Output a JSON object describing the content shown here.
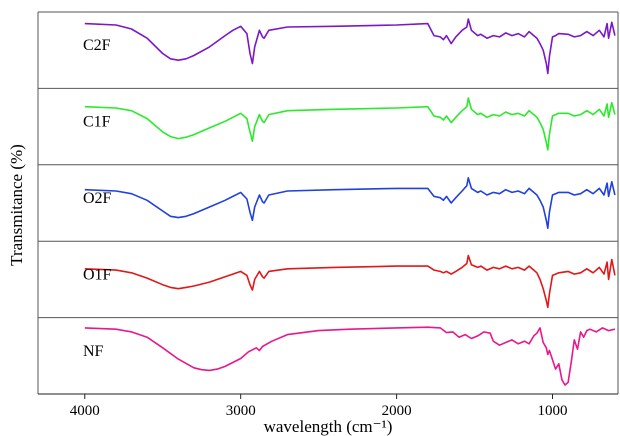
{
  "chart_data": {
    "type": "line",
    "title": "",
    "xlabel": "wavelength (cm⁻¹)",
    "ylabel": "Transmitance (%)",
    "xlim": [
      4300,
      580
    ],
    "x_reversed": true,
    "x_ticks": [
      4000,
      3000,
      2000,
      1000
    ],
    "ylim": [
      0,
      1
    ],
    "grid": false,
    "legend": "none",
    "layout": "stacked-panels",
    "series": [
      {
        "name": "C2F",
        "color": "#7a18c8",
        "x": [
          4000,
          3800,
          3700,
          3600,
          3500,
          3450,
          3400,
          3350,
          3300,
          3200,
          3100,
          3050,
          3000,
          2960,
          2940,
          2925,
          2910,
          2880,
          2860,
          2850,
          2820,
          2700,
          2400,
          2000,
          1800,
          1760,
          1720,
          1700,
          1680,
          1650,
          1620,
          1580,
          1550,
          1540,
          1520,
          1480,
          1460,
          1420,
          1380,
          1340,
          1300,
          1260,
          1220,
          1180,
          1150,
          1120,
          1100,
          1080,
          1060,
          1040,
          1030,
          1020,
          1000,
          980,
          960,
          900,
          860,
          820,
          780,
          740,
          700,
          670,
          650,
          640,
          620,
          600
        ],
        "y": [
          0.9,
          0.88,
          0.82,
          0.68,
          0.45,
          0.37,
          0.35,
          0.37,
          0.42,
          0.55,
          0.72,
          0.8,
          0.86,
          0.75,
          0.45,
          0.3,
          0.55,
          0.8,
          0.7,
          0.68,
          0.8,
          0.85,
          0.86,
          0.88,
          0.9,
          0.72,
          0.7,
          0.66,
          0.72,
          0.6,
          0.7,
          0.8,
          0.85,
          0.97,
          0.8,
          0.72,
          0.74,
          0.68,
          0.72,
          0.7,
          0.76,
          0.72,
          0.75,
          0.7,
          0.78,
          0.72,
          0.68,
          0.6,
          0.5,
          0.3,
          0.15,
          0.4,
          0.7,
          0.72,
          0.75,
          0.74,
          0.7,
          0.72,
          0.78,
          0.72,
          0.8,
          0.7,
          0.9,
          0.68,
          0.92,
          0.72
        ]
      },
      {
        "name": "C1F",
        "color": "#2bea2b",
        "x": [
          4000,
          3800,
          3700,
          3600,
          3500,
          3450,
          3400,
          3350,
          3300,
          3200,
          3100,
          3050,
          3000,
          2960,
          2940,
          2925,
          2910,
          2880,
          2860,
          2850,
          2820,
          2700,
          2400,
          2000,
          1800,
          1760,
          1720,
          1700,
          1680,
          1650,
          1620,
          1580,
          1550,
          1540,
          1520,
          1480,
          1460,
          1420,
          1380,
          1340,
          1300,
          1260,
          1220,
          1180,
          1150,
          1120,
          1100,
          1080,
          1060,
          1040,
          1030,
          1020,
          1000,
          980,
          960,
          900,
          860,
          820,
          780,
          740,
          700,
          670,
          650,
          640,
          620,
          600
        ],
        "y": [
          0.8,
          0.78,
          0.74,
          0.62,
          0.42,
          0.35,
          0.32,
          0.34,
          0.38,
          0.48,
          0.58,
          0.64,
          0.7,
          0.62,
          0.42,
          0.28,
          0.5,
          0.68,
          0.58,
          0.56,
          0.68,
          0.74,
          0.76,
          0.78,
          0.8,
          0.66,
          0.64,
          0.6,
          0.66,
          0.56,
          0.64,
          0.74,
          0.8,
          0.93,
          0.76,
          0.68,
          0.7,
          0.64,
          0.68,
          0.66,
          0.72,
          0.68,
          0.7,
          0.66,
          0.74,
          0.68,
          0.64,
          0.56,
          0.46,
          0.26,
          0.15,
          0.38,
          0.66,
          0.68,
          0.7,
          0.7,
          0.66,
          0.68,
          0.74,
          0.68,
          0.76,
          0.66,
          0.84,
          0.64,
          0.86,
          0.68
        ]
      },
      {
        "name": "O2F",
        "color": "#2040e0",
        "x": [
          4000,
          3800,
          3700,
          3600,
          3500,
          3450,
          3400,
          3350,
          3300,
          3200,
          3100,
          3050,
          3000,
          2960,
          2940,
          2925,
          2910,
          2880,
          2860,
          2850,
          2820,
          2700,
          2400,
          2000,
          1800,
          1760,
          1720,
          1700,
          1680,
          1650,
          1620,
          1580,
          1550,
          1540,
          1520,
          1480,
          1460,
          1420,
          1380,
          1340,
          1300,
          1260,
          1220,
          1180,
          1150,
          1120,
          1100,
          1080,
          1060,
          1040,
          1030,
          1020,
          1000,
          980,
          960,
          900,
          860,
          820,
          780,
          740,
          700,
          670,
          650,
          640,
          620,
          600
        ],
        "y": [
          0.7,
          0.68,
          0.64,
          0.54,
          0.38,
          0.3,
          0.28,
          0.3,
          0.34,
          0.44,
          0.54,
          0.6,
          0.66,
          0.56,
          0.36,
          0.24,
          0.44,
          0.62,
          0.52,
          0.5,
          0.62,
          0.68,
          0.7,
          0.72,
          0.72,
          0.6,
          0.58,
          0.54,
          0.6,
          0.5,
          0.58,
          0.68,
          0.76,
          0.88,
          0.72,
          0.66,
          0.68,
          0.62,
          0.66,
          0.64,
          0.7,
          0.66,
          0.68,
          0.64,
          0.72,
          0.66,
          0.62,
          0.54,
          0.44,
          0.24,
          0.12,
          0.36,
          0.62,
          0.64,
          0.66,
          0.66,
          0.62,
          0.64,
          0.7,
          0.64,
          0.72,
          0.62,
          0.8,
          0.6,
          0.82,
          0.62
        ]
      },
      {
        "name": "O1F",
        "color": "#e01818",
        "x": [
          4000,
          3800,
          3700,
          3600,
          3500,
          3450,
          3400,
          3350,
          3300,
          3200,
          3100,
          3050,
          3000,
          2960,
          2940,
          2925,
          2910,
          2880,
          2860,
          2850,
          2820,
          2700,
          2400,
          2000,
          1800,
          1760,
          1720,
          1700,
          1680,
          1650,
          1620,
          1580,
          1550,
          1540,
          1520,
          1480,
          1460,
          1420,
          1380,
          1340,
          1300,
          1260,
          1220,
          1180,
          1150,
          1120,
          1100,
          1080,
          1060,
          1040,
          1030,
          1020,
          1000,
          980,
          960,
          900,
          860,
          820,
          780,
          740,
          700,
          670,
          650,
          640,
          620,
          600
        ],
        "y": [
          0.66,
          0.64,
          0.6,
          0.52,
          0.42,
          0.38,
          0.36,
          0.38,
          0.4,
          0.46,
          0.54,
          0.58,
          0.62,
          0.56,
          0.42,
          0.34,
          0.5,
          0.62,
          0.54,
          0.52,
          0.62,
          0.66,
          0.68,
          0.7,
          0.7,
          0.64,
          0.62,
          0.6,
          0.62,
          0.58,
          0.62,
          0.68,
          0.74,
          0.86,
          0.72,
          0.68,
          0.7,
          0.64,
          0.68,
          0.66,
          0.7,
          0.66,
          0.68,
          0.64,
          0.7,
          0.64,
          0.6,
          0.5,
          0.36,
          0.18,
          0.08,
          0.28,
          0.56,
          0.58,
          0.6,
          0.62,
          0.58,
          0.6,
          0.66,
          0.6,
          0.68,
          0.58,
          0.76,
          0.5,
          0.8,
          0.56
        ]
      },
      {
        "name": "NF",
        "color": "#e8188c",
        "x": [
          4000,
          3800,
          3700,
          3600,
          3500,
          3400,
          3300,
          3250,
          3200,
          3150,
          3100,
          3000,
          2950,
          2900,
          2880,
          2860,
          2800,
          2700,
          2500,
          2300,
          2000,
          1800,
          1720,
          1680,
          1640,
          1600,
          1560,
          1520,
          1480,
          1440,
          1400,
          1380,
          1340,
          1300,
          1260,
          1220,
          1180,
          1150,
          1120,
          1100,
          1080,
          1060,
          1040,
          1030,
          1020,
          1000,
          980,
          960,
          940,
          920,
          900,
          880,
          860,
          840,
          820,
          800,
          780,
          760,
          720,
          680,
          640,
          600
        ],
        "y": [
          0.92,
          0.9,
          0.86,
          0.78,
          0.62,
          0.45,
          0.32,
          0.29,
          0.28,
          0.3,
          0.34,
          0.46,
          0.56,
          0.62,
          0.58,
          0.64,
          0.72,
          0.82,
          0.88,
          0.9,
          0.92,
          0.93,
          0.92,
          0.85,
          0.86,
          0.78,
          0.82,
          0.76,
          0.8,
          0.86,
          0.84,
          0.72,
          0.66,
          0.7,
          0.74,
          0.68,
          0.72,
          0.68,
          0.8,
          0.84,
          0.92,
          0.7,
          0.62,
          0.52,
          0.58,
          0.44,
          0.3,
          0.38,
          0.14,
          0.06,
          0.1,
          0.4,
          0.74,
          0.6,
          0.86,
          0.78,
          0.88,
          0.9,
          0.86,
          0.92,
          0.88,
          0.9
        ]
      }
    ]
  }
}
